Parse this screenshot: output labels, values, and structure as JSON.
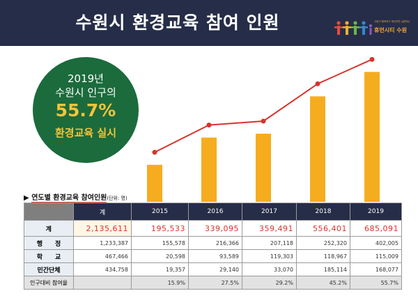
{
  "header": {
    "title": "수원시 환경교육 참여 인원",
    "logo_text": "휴먼시티 수원",
    "logo_tiny": "사람이 행복하고 제안하면 실현되는"
  },
  "callout": {
    "line1": "2019년",
    "line2": "수원시 인구의",
    "percent": "55.7%",
    "line4": "환경교육 실시"
  },
  "section": {
    "label": "연도별 환경교육 참여인원",
    "unit": "(단위: 명)"
  },
  "colors": {
    "header_bg": "#262d48",
    "callout_bg": "#1b6b3c",
    "bar": "#f5ad1f",
    "line": "#d8342c",
    "highlight_text": "#f6c43a"
  },
  "chart_data": {
    "type": "bar",
    "categories": [
      "2015",
      "2016",
      "2017",
      "2018",
      "2019"
    ],
    "series": [
      {
        "values": [
          195533,
          339095,
          359491,
          556401,
          685091
        ]
      },
      {
        "values": [
          195533,
          339095,
          359491,
          556401,
          685091
        ]
      }
    ],
    "ylim": [
      0,
      800000
    ],
    "grid": false,
    "legend": "none"
  },
  "table": {
    "columns": [
      "계",
      "2015",
      "2016",
      "2017",
      "2018",
      "2019"
    ],
    "rows": [
      {
        "label": "계",
        "values": [
          "2,135,611",
          "195,533",
          "339,095",
          "359,491",
          "556,401",
          "685,091"
        ]
      },
      {
        "label": "행　　정",
        "values": [
          "1,233,387",
          "155,578",
          "216,366",
          "207,118",
          "252,320",
          "402,005"
        ]
      },
      {
        "label": "학　　교",
        "values": [
          "467,466",
          "20,598",
          "93,589",
          "119,303",
          "118,967",
          "115,009"
        ]
      },
      {
        "label": "민간단체",
        "values": [
          "434,758",
          "19,357",
          "29,140",
          "33,070",
          "185,114",
          "168,077"
        ]
      },
      {
        "label": "인구대비 참여율",
        "values": [
          "",
          "15.9%",
          "27.5%",
          "29.2%",
          "45.2%",
          "55.7%"
        ]
      }
    ]
  }
}
